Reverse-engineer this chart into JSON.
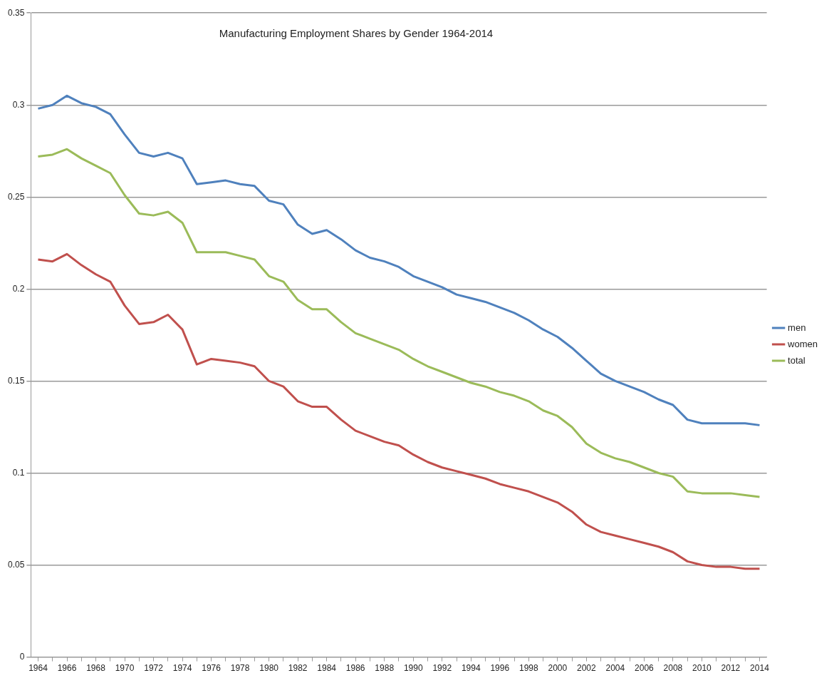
{
  "chart_data": {
    "type": "line",
    "title": "Manufacturing Employment Shares by Gender 1964-2014",
    "categories": [
      "1964",
      null,
      "1966",
      null,
      "1968",
      null,
      "1970",
      null,
      "1972",
      null,
      "1974",
      null,
      "1976",
      null,
      "1978",
      null,
      "1980",
      null,
      "1982",
      null,
      "1984",
      null,
      "1986",
      null,
      "1988",
      null,
      "1990",
      null,
      "1992",
      null,
      "1994",
      null,
      "1996",
      null,
      "1998",
      null,
      "2000",
      null,
      "2002",
      null,
      "2004",
      null,
      "2006",
      null,
      "2008",
      null,
      "2010",
      null,
      "2012",
      null,
      "2014"
    ],
    "series": [
      {
        "name": "men",
        "color": "#4f81bd",
        "values": [
          0.298,
          0.3,
          0.305,
          0.301,
          0.299,
          0.295,
          0.284,
          0.274,
          0.272,
          0.274,
          0.271,
          0.257,
          0.258,
          0.259,
          0.257,
          0.256,
          0.248,
          0.246,
          0.235,
          0.23,
          0.232,
          0.227,
          0.221,
          0.217,
          0.215,
          0.212,
          0.207,
          0.204,
          0.201,
          0.197,
          0.195,
          0.193,
          0.19,
          0.187,
          0.183,
          0.178,
          0.174,
          0.168,
          0.161,
          0.154,
          0.15,
          0.147,
          0.144,
          0.14,
          0.137,
          0.129,
          0.127,
          0.127,
          0.127,
          0.127,
          0.126
        ]
      },
      {
        "name": "women",
        "color": "#c0504d",
        "values": [
          0.216,
          0.215,
          0.219,
          0.213,
          0.208,
          0.204,
          0.191,
          0.181,
          0.182,
          0.186,
          0.178,
          0.159,
          0.162,
          0.161,
          0.16,
          0.158,
          0.15,
          0.147,
          0.139,
          0.136,
          0.136,
          0.129,
          0.123,
          0.12,
          0.117,
          0.115,
          0.11,
          0.106,
          0.103,
          0.101,
          0.099,
          0.097,
          0.094,
          0.092,
          0.09,
          0.087,
          0.084,
          0.079,
          0.072,
          0.068,
          0.066,
          0.064,
          0.062,
          0.06,
          0.057,
          0.052,
          0.05,
          0.049,
          0.049,
          0.048,
          0.048
        ]
      },
      {
        "name": "total",
        "color": "#9bbb59",
        "values": [
          0.272,
          0.273,
          0.276,
          0.271,
          0.267,
          0.263,
          0.251,
          0.241,
          0.24,
          0.242,
          0.236,
          0.22,
          0.22,
          0.22,
          0.218,
          0.216,
          0.207,
          0.204,
          0.194,
          0.189,
          0.189,
          0.182,
          0.176,
          0.173,
          0.17,
          0.167,
          0.162,
          0.158,
          0.155,
          0.152,
          0.149,
          0.147,
          0.144,
          0.142,
          0.139,
          0.134,
          0.131,
          0.125,
          0.116,
          0.111,
          0.108,
          0.106,
          0.103,
          0.1,
          0.098,
          0.09,
          0.089,
          0.089,
          0.089,
          0.088,
          0.087
        ]
      }
    ],
    "ylim": [
      0,
      0.35
    ],
    "yticks": [
      0,
      0.05,
      0.1,
      0.15,
      0.2,
      0.25,
      0.3,
      0.35
    ],
    "grid": "y",
    "legend": "right",
    "marker": "none",
    "line_style": "solid"
  }
}
